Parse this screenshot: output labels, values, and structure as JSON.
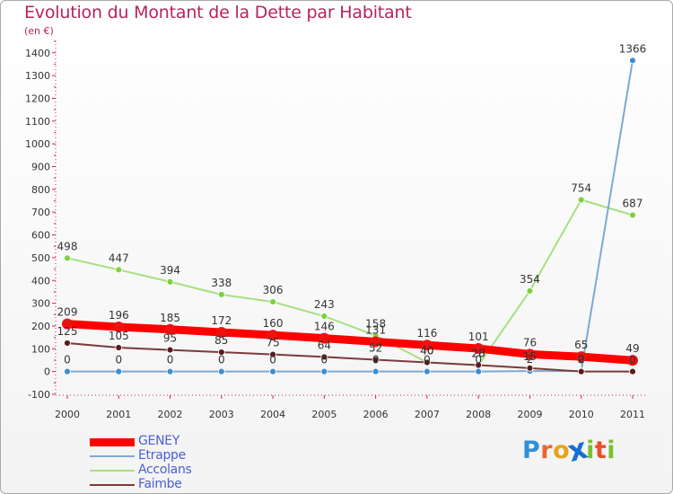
{
  "title": "Evolution du Montant de la Dette par Habitant",
  "subtitle": "(en €)",
  "logo": {
    "text": "Proxiti",
    "letters": [
      {
        "ch": "P",
        "color": "#2f8fd8"
      },
      {
        "ch": "r",
        "color": "#e8682a"
      },
      {
        "ch": "o",
        "color": "#e8a21a"
      },
      {
        "ch": "x",
        "color": "#1a6fd6"
      },
      {
        "ch": "i",
        "color": "#7bbf2f"
      },
      {
        "ch": "t",
        "color": "#e94f2a"
      },
      {
        "ch": "i",
        "color": "#79c230"
      }
    ]
  },
  "chart_data": {
    "type": "line",
    "title": "Evolution du Montant de la Dette par Habitant",
    "subtitle": "(en €)",
    "categories": [
      "2000",
      "2001",
      "2002",
      "2003",
      "2004",
      "2005",
      "2006",
      "2007",
      "2008",
      "2009",
      "2010",
      "2011"
    ],
    "yticks": [
      -100,
      0,
      100,
      200,
      300,
      400,
      500,
      600,
      700,
      800,
      900,
      1000,
      1100,
      1200,
      1300,
      1400
    ],
    "ylim": [
      -100,
      1450
    ],
    "grid": false,
    "legend_position": "bottom-left",
    "series": [
      {
        "name": "GENEY",
        "color": "#ff0000",
        "values": [
          209,
          196,
          185,
          172,
          160,
          146,
          131,
          116,
          101,
          76,
          65,
          49
        ],
        "labels": [
          "209",
          "196",
          "185",
          "172",
          "160",
          "146",
          "131",
          "116",
          "101",
          "76",
          "65",
          "49"
        ]
      },
      {
        "name": "Etrappe",
        "color": "#7fa8d0",
        "values": [
          0,
          0,
          0,
          0,
          0,
          0,
          0,
          0,
          0,
          2,
          2,
          1366
        ],
        "labels": [
          "0",
          "0",
          "0",
          "0",
          "0",
          "0",
          "0",
          "0",
          "0",
          "2",
          "2",
          "1366"
        ]
      },
      {
        "name": "Accolans",
        "color": "#a6e081",
        "values": [
          498,
          447,
          394,
          338,
          306,
          243,
          158,
          40,
          28,
          354,
          754,
          687
        ],
        "labels": [
          "498",
          "447",
          "394",
          "338",
          "306",
          "243",
          "158",
          "40",
          "28",
          "354",
          "754",
          "687"
        ]
      },
      {
        "name": "Faimbe",
        "color": "#7b3a3a",
        "values": [
          125,
          105,
          95,
          85,
          75,
          64,
          52,
          40,
          28,
          15,
          0,
          0
        ],
        "labels": [
          "125",
          "105",
          "95",
          "85",
          "75",
          "64",
          "52",
          "40",
          "28",
          "15",
          "0",
          "0"
        ]
      }
    ]
  }
}
